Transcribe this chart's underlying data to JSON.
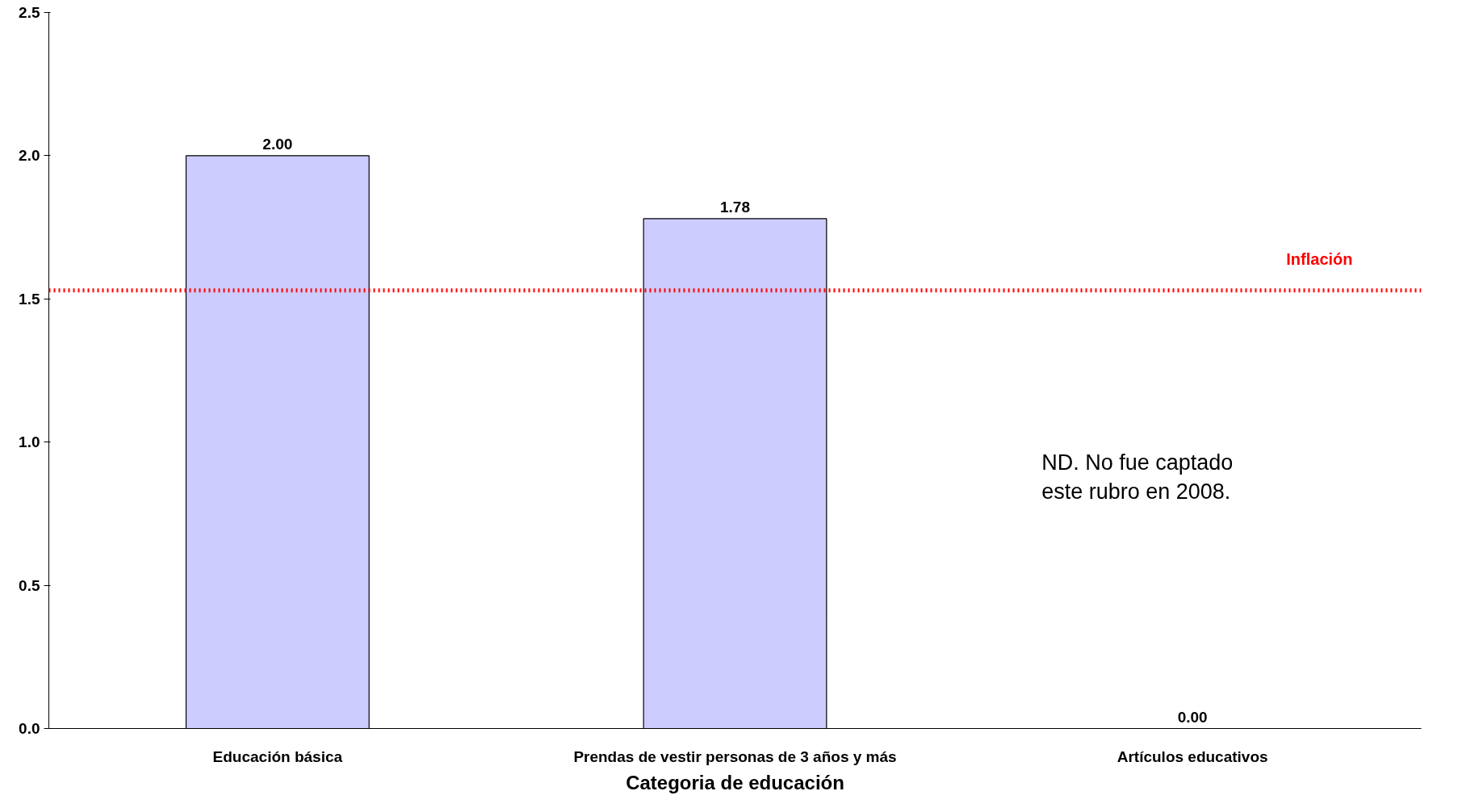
{
  "chart_data": {
    "type": "bar",
    "xlabel": "Categoria de educación",
    "categories": [
      "Educación básica",
      "Prendas de vestir personas de 3 años y más",
      "Artículos educativos"
    ],
    "values": [
      2.0,
      1.78,
      0.0
    ],
    "color": "#ccccff",
    "value_labels": [
      "2.00",
      "1.78",
      "0.00"
    ],
    "ylim": [
      0,
      2.5
    ],
    "yticks": [
      {
        "value": 0,
        "label": "0.0"
      },
      {
        "value": 0.5,
        "label": "0.5"
      },
      {
        "value": 1,
        "label": "1.0"
      },
      {
        "value": 1.5,
        "label": "1.5"
      },
      {
        "value": 2,
        "label": "2.0"
      },
      {
        "value": 2.5,
        "label": "2.5"
      }
    ],
    "ref_lines": [
      {
        "axis": "y",
        "value": 1.53,
        "label": "Inflación",
        "color": "#ff0000",
        "line_style": "dotted"
      }
    ],
    "annotations": [
      "ND. No fue captado\neste rubro en 2008."
    ],
    "grid": false
  }
}
